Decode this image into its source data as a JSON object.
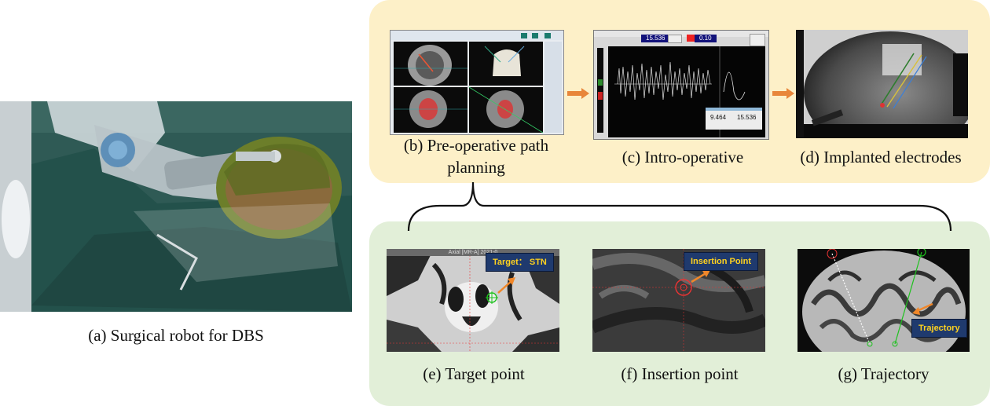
{
  "panels": {
    "a": {
      "caption": "(a) Surgical robot for DBS"
    },
    "b": {
      "caption_line1": "(b) Pre-operative path",
      "caption_line2": "planning"
    },
    "c": {
      "caption": "(c) Intro-operative",
      "readouts": [
        "15.536",
        "0.10",
        "9.464",
        "15.536"
      ]
    },
    "d": {
      "caption": "(d) Implanted electrodes"
    },
    "e": {
      "caption": "(e) Target point",
      "tag": "Target： STN",
      "header": "Axial [MR-A] 2021-0"
    },
    "f": {
      "caption": "(f) Insertion point",
      "tag": "Insertion Point"
    },
    "g": {
      "caption": "(g) Trajectory",
      "tag": "Trajectory"
    }
  },
  "colors": {
    "top_group_bg": "#fdf0c8",
    "bottom_group_bg": "#e2efd8",
    "arrow": "#e8863a",
    "label_bg": "#1f3a6e",
    "label_text": "#ffd21f"
  }
}
